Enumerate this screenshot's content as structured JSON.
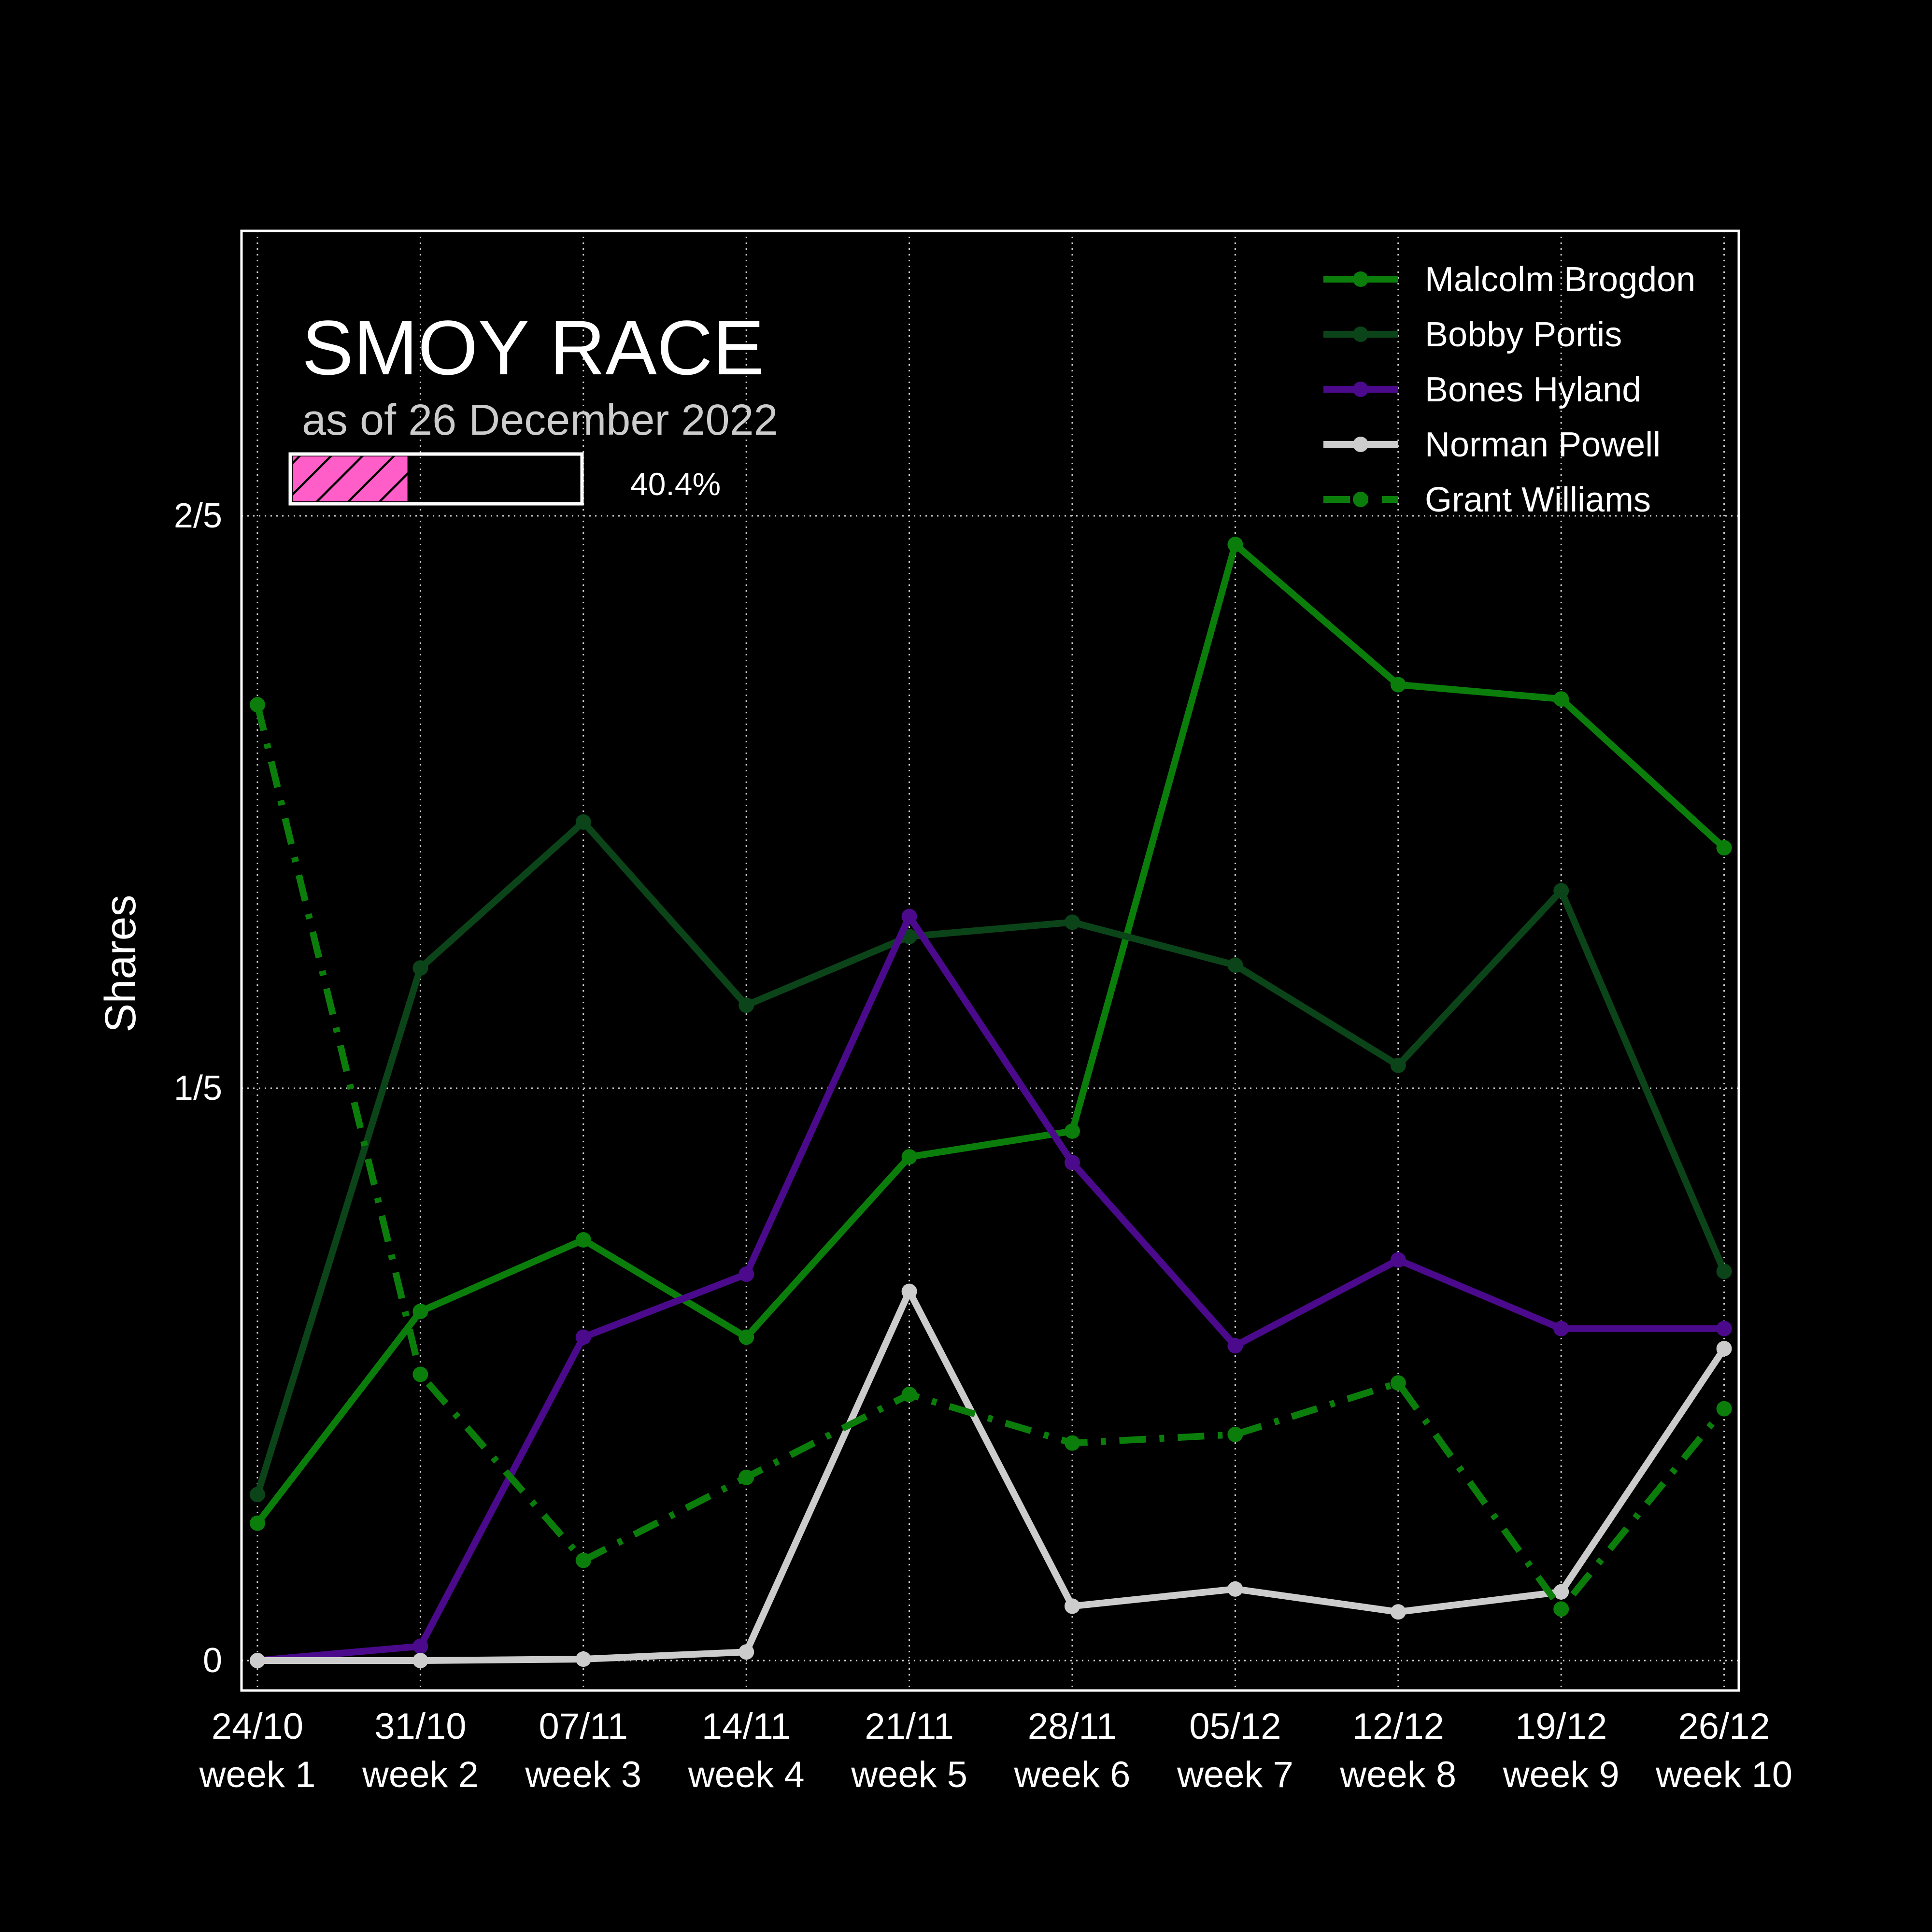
{
  "chart_data": {
    "type": "line",
    "title": "SMOY RACE",
    "subtitle": "as of 26 December 2022",
    "progress": {
      "value": 0.404,
      "label": "40.4%",
      "fill_color": "#ff5ec8",
      "border_color": "#ffffff"
    },
    "xlabel": "",
    "ylabel": "Shares",
    "x_ticks": [
      {
        "date": "24/10",
        "week": "week 1"
      },
      {
        "date": "31/10",
        "week": "week 2"
      },
      {
        "date": "07/11",
        "week": "week 3"
      },
      {
        "date": "14/11",
        "week": "week 4"
      },
      {
        "date": "21/11",
        "week": "week 5"
      },
      {
        "date": "28/11",
        "week": "week 6"
      },
      {
        "date": "05/12",
        "week": "week 7"
      },
      {
        "date": "12/12",
        "week": "week 8"
      },
      {
        "date": "19/12",
        "week": "week 9"
      },
      {
        "date": "26/12",
        "week": "week 10"
      }
    ],
    "y_ticks": [
      {
        "value": 0,
        "label": "0"
      },
      {
        "value": 0.2,
        "label": "1/5"
      },
      {
        "value": 0.4,
        "label": "2/5"
      }
    ],
    "ylim": [
      -0.01,
      0.5
    ],
    "grid": true,
    "legend_position": "top-right",
    "series": [
      {
        "name": "Malcolm Brogdon",
        "color": "#0b7d0b",
        "style": "solid",
        "values": [
          0.048,
          0.122,
          0.147,
          0.113,
          0.176,
          0.185,
          0.39,
          0.341,
          0.336,
          0.284
        ]
      },
      {
        "name": "Bobby Portis",
        "color": "#0b4418",
        "style": "solid",
        "values": [
          0.058,
          0.242,
          0.293,
          0.229,
          0.253,
          0.258,
          0.243,
          0.208,
          0.269,
          0.136
        ]
      },
      {
        "name": "Bones Hyland",
        "color": "#4b0a8c",
        "style": "solid",
        "values": [
          0.0,
          0.005,
          0.113,
          0.135,
          0.26,
          0.174,
          0.11,
          0.14,
          0.116,
          0.116
        ]
      },
      {
        "name": "Norman Powell",
        "color": "#cccccc",
        "style": "solid",
        "values": [
          0.0,
          0.0,
          0.0005,
          0.003,
          0.129,
          0.019,
          0.025,
          0.017,
          0.024,
          0.109
        ]
      },
      {
        "name": "Grant Williams",
        "color": "#0b7d0b",
        "style": "dashdot",
        "values": [
          0.334,
          0.1,
          0.035,
          0.064,
          0.093,
          0.076,
          0.079,
          0.097,
          0.018,
          0.088
        ]
      }
    ]
  }
}
